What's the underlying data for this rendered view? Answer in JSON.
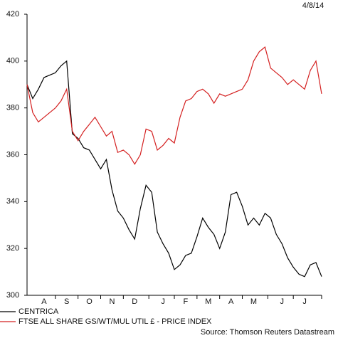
{
  "chart_data": {
    "type": "line",
    "date": "4/8/14",
    "source": "Source: Thomson Reuters Datastream",
    "categories": [
      null,
      null,
      null,
      "A",
      null,
      null,
      null,
      "S",
      null,
      null,
      null,
      "O",
      null,
      null,
      null,
      "N",
      null,
      null,
      null,
      "D",
      null,
      null,
      null,
      null,
      "J",
      null,
      null,
      null,
      "F",
      null,
      null,
      null,
      "M",
      null,
      null,
      null,
      "A",
      null,
      null,
      null,
      "M",
      null,
      null,
      null,
      null,
      "J",
      null,
      null,
      null,
      "J",
      null,
      null,
      null
    ],
    "series": [
      {
        "name": "CENTRICA",
        "color": "#000000",
        "values": [
          390,
          384,
          388,
          393,
          394,
          395,
          398,
          400,
          369,
          367,
          363,
          362,
          358,
          354,
          358,
          345,
          336,
          333,
          328,
          324,
          337,
          347,
          344,
          327,
          322,
          318,
          311,
          313,
          317,
          318,
          325,
          333,
          329,
          326,
          320,
          327,
          343,
          344,
          338,
          330,
          333,
          330,
          335,
          333,
          326,
          322,
          316,
          312,
          309,
          308,
          313,
          314,
          308
        ]
      },
      {
        "name": "FTSE ALL SHARE GS/WT/MUL UTIL £ - PRICE INDEX",
        "color": "#d42020",
        "values": [
          390,
          378,
          374,
          376,
          378,
          380,
          383,
          388,
          370,
          366,
          370,
          373,
          376,
          372,
          368,
          370,
          361,
          362,
          360,
          356,
          360,
          371,
          370,
          362,
          364,
          367,
          365,
          376,
          383,
          384,
          387,
          388,
          386,
          382,
          386,
          385,
          386,
          387,
          388,
          392,
          400,
          404,
          406,
          397,
          395,
          393,
          390,
          392,
          390,
          388,
          396,
          400,
          386
        ]
      }
    ],
    "ylim": [
      300,
      420
    ],
    "yticks": [
      300,
      320,
      340,
      360,
      380,
      400,
      420
    ]
  }
}
